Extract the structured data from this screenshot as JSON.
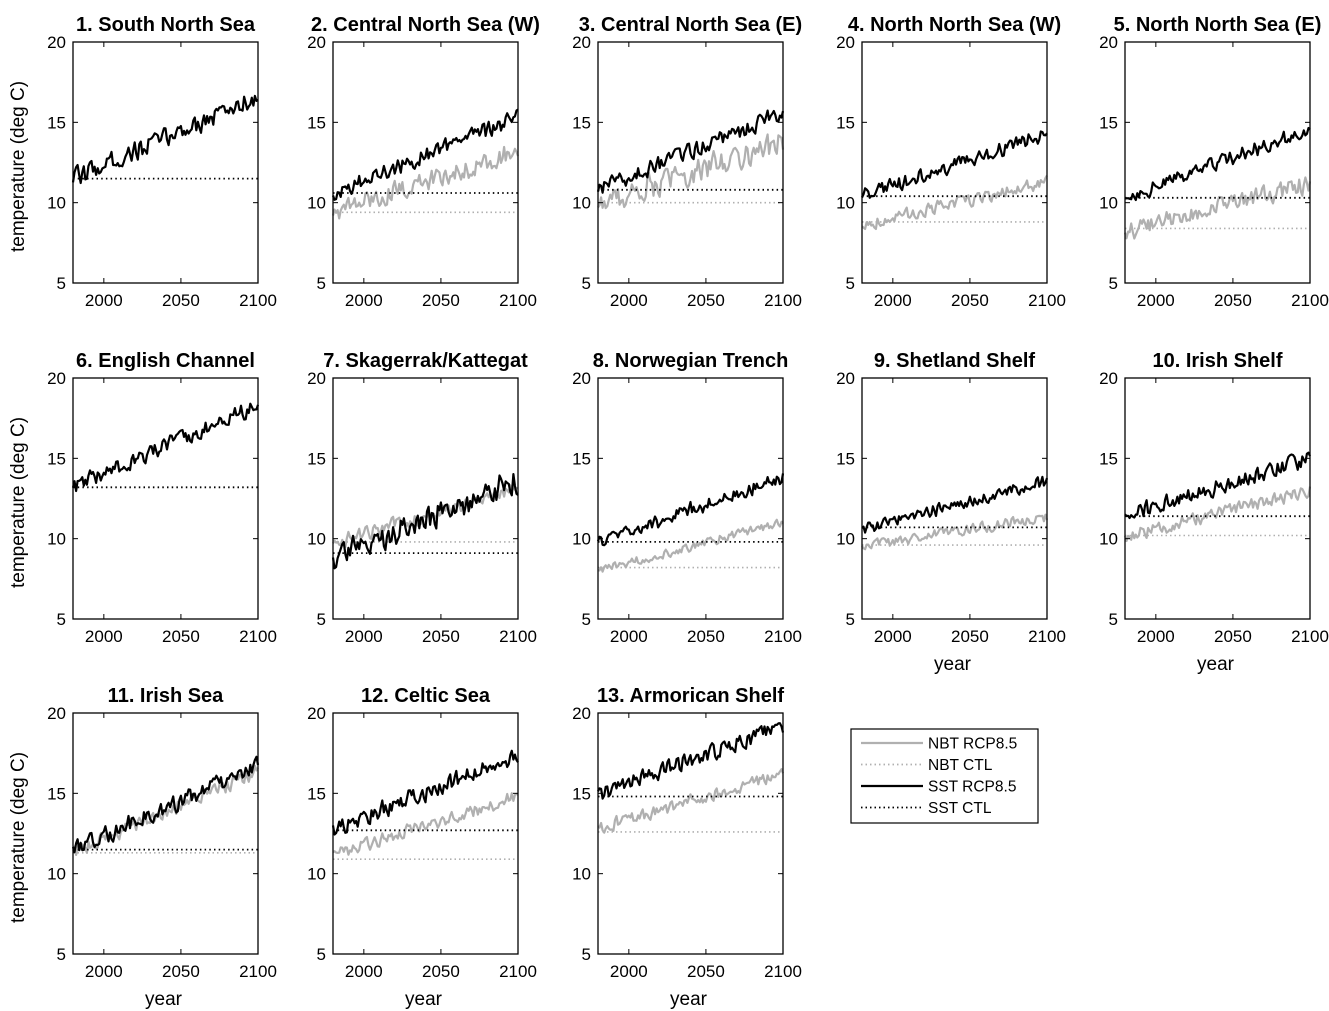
{
  "figure": {
    "legend": {
      "placement": "row-3, right of panel 13",
      "entries": [
        {
          "label": "NBT RCP8.5",
          "color": "#b0b0b0",
          "style": "solid"
        },
        {
          "label": "NBT CTL",
          "color": "#b0b0b0",
          "style": "dotted"
        },
        {
          "label": "SST RCP8.5",
          "color": "#000000",
          "style": "solid"
        },
        {
          "label": "SST CTL",
          "color": "#000000",
          "style": "dotted"
        }
      ]
    }
  },
  "chart_data": [
    {
      "type": "line",
      "title": "1. South North Sea",
      "ylabel": "temperature (deg C)",
      "xlabel": "",
      "xlim": [
        1980,
        2100
      ],
      "ylim": [
        5,
        20
      ],
      "xticks": [
        "2000",
        "2050",
        "2100"
      ],
      "yticks": [
        "5",
        "10",
        "15",
        "20"
      ],
      "series": [
        {
          "name": "SST RCP8.5",
          "start": 11.5,
          "end": 16.6,
          "noise": 0.55
        },
        {
          "name": "SST CTL",
          "value": 11.5
        }
      ]
    },
    {
      "type": "line",
      "title": "2. Central North Sea (W)",
      "ylabel": "",
      "xlabel": "",
      "xlim": [
        1980,
        2100
      ],
      "ylim": [
        5,
        20
      ],
      "xticks": [
        "2000",
        "2050",
        "2100"
      ],
      "yticks": [
        "5",
        "10",
        "15",
        "20"
      ],
      "series": [
        {
          "name": "NBT RCP8.5",
          "start": 9.4,
          "end": 13.2,
          "noise": 0.55
        },
        {
          "name": "NBT CTL",
          "value": 9.4
        },
        {
          "name": "SST RCP8.5",
          "start": 10.6,
          "end": 15.3,
          "noise": 0.45
        },
        {
          "name": "SST CTL",
          "value": 10.6
        }
      ]
    },
    {
      "type": "line",
      "title": "3. Central North Sea (E)",
      "ylabel": "",
      "xlabel": "",
      "xlim": [
        1980,
        2100
      ],
      "ylim": [
        5,
        20
      ],
      "xticks": [
        "2000",
        "2050",
        "2100"
      ],
      "yticks": [
        "5",
        "10",
        "15",
        "20"
      ],
      "series": [
        {
          "name": "NBT RCP8.5",
          "start": 9.9,
          "end": 13.8,
          "noise": 0.7
        },
        {
          "name": "NBT CTL",
          "value": 10.0
        },
        {
          "name": "SST RCP8.5",
          "start": 10.8,
          "end": 15.6,
          "noise": 0.45
        },
        {
          "name": "SST CTL",
          "value": 10.8
        }
      ]
    },
    {
      "type": "line",
      "title": "4. North North Sea (W)",
      "ylabel": "",
      "xlabel": "",
      "xlim": [
        1980,
        2100
      ],
      "ylim": [
        5,
        20
      ],
      "xticks": [
        "2000",
        "2050",
        "2100"
      ],
      "yticks": [
        "5",
        "10",
        "15",
        "20"
      ],
      "series": [
        {
          "name": "NBT RCP8.5",
          "start": 8.6,
          "end": 11.3,
          "noise": 0.35
        },
        {
          "name": "NBT CTL",
          "value": 8.8
        },
        {
          "name": "SST RCP8.5",
          "start": 10.4,
          "end": 14.3,
          "noise": 0.4
        },
        {
          "name": "SST CTL",
          "value": 10.4
        }
      ]
    },
    {
      "type": "line",
      "title": "5. North North Sea (E)",
      "ylabel": "",
      "xlabel": "",
      "xlim": [
        1980,
        2100
      ],
      "ylim": [
        5,
        20
      ],
      "xticks": [
        "2000",
        "2050",
        "2100"
      ],
      "yticks": [
        "5",
        "10",
        "15",
        "20"
      ],
      "series": [
        {
          "name": "NBT RCP8.5",
          "start": 8.2,
          "end": 11.2,
          "noise": 0.5
        },
        {
          "name": "NBT CTL",
          "value": 8.4
        },
        {
          "name": "SST RCP8.5",
          "start": 10.3,
          "end": 14.6,
          "noise": 0.4
        },
        {
          "name": "SST CTL",
          "value": 10.3
        }
      ]
    },
    {
      "type": "line",
      "title": "6. English Channel",
      "ylabel": "temperature (deg C)",
      "xlabel": "",
      "xlim": [
        1980,
        2100
      ],
      "ylim": [
        5,
        20
      ],
      "xticks": [
        "2000",
        "2050",
        "2100"
      ],
      "yticks": [
        "5",
        "10",
        "15",
        "20"
      ],
      "series": [
        {
          "name": "SST RCP8.5",
          "start": 13.2,
          "end": 18.3,
          "noise": 0.45
        },
        {
          "name": "SST CTL",
          "value": 13.2
        }
      ]
    },
    {
      "type": "line",
      "title": "7. Skagerrak/Kattegat",
      "ylabel": "",
      "xlabel": "",
      "xlim": [
        1980,
        2100
      ],
      "ylim": [
        5,
        20
      ],
      "xticks": [
        "2000",
        "2050",
        "2100"
      ],
      "yticks": [
        "5",
        "10",
        "15",
        "20"
      ],
      "series": [
        {
          "name": "NBT RCP8.5",
          "start": 9.7,
          "end": 13.2,
          "noise": 0.4
        },
        {
          "name": "NBT CTL",
          "value": 9.8
        },
        {
          "name": "SST RCP8.5",
          "start": 8.8,
          "end": 13.6,
          "noise": 0.75
        },
        {
          "name": "SST CTL",
          "value": 9.1
        }
      ]
    },
    {
      "type": "line",
      "title": "8. Norwegian Trench",
      "ylabel": "",
      "xlabel": "",
      "xlim": [
        1980,
        2100
      ],
      "ylim": [
        5,
        20
      ],
      "xticks": [
        "2000",
        "2050",
        "2100"
      ],
      "yticks": [
        "5",
        "10",
        "15",
        "20"
      ],
      "series": [
        {
          "name": "NBT RCP8.5",
          "start": 8.0,
          "end": 11.0,
          "noise": 0.25
        },
        {
          "name": "NBT CTL",
          "value": 8.2
        },
        {
          "name": "SST RCP8.5",
          "start": 9.8,
          "end": 13.8,
          "noise": 0.4
        },
        {
          "name": "SST CTL",
          "value": 9.8
        }
      ]
    },
    {
      "type": "line",
      "title": "9. Shetland Shelf",
      "ylabel": "",
      "xlabel": "year",
      "xlim": [
        1980,
        2100
      ],
      "ylim": [
        5,
        20
      ],
      "xticks": [
        "2000",
        "2050",
        "2100"
      ],
      "yticks": [
        "5",
        "10",
        "15",
        "20"
      ],
      "series": [
        {
          "name": "NBT RCP8.5",
          "start": 9.5,
          "end": 11.3,
          "noise": 0.3
        },
        {
          "name": "NBT CTL",
          "value": 9.6
        },
        {
          "name": "SST RCP8.5",
          "start": 10.6,
          "end": 13.6,
          "noise": 0.35
        },
        {
          "name": "SST CTL",
          "value": 10.7
        }
      ]
    },
    {
      "type": "line",
      "title": "10. Irish Shelf",
      "ylabel": "",
      "xlabel": "year",
      "xlim": [
        1980,
        2100
      ],
      "ylim": [
        5,
        20
      ],
      "xticks": [
        "2000",
        "2050",
        "2100"
      ],
      "yticks": [
        "5",
        "10",
        "15",
        "20"
      ],
      "series": [
        {
          "name": "NBT RCP8.5",
          "start": 10.1,
          "end": 13.0,
          "noise": 0.35
        },
        {
          "name": "NBT CTL",
          "value": 10.2
        },
        {
          "name": "SST RCP8.5",
          "start": 11.4,
          "end": 15.0,
          "noise": 0.45
        },
        {
          "name": "SST CTL",
          "value": 11.4
        }
      ]
    },
    {
      "type": "line",
      "title": "11. Irish Sea",
      "ylabel": "temperature (deg C)",
      "xlabel": "year",
      "xlim": [
        1980,
        2100
      ],
      "ylim": [
        5,
        20
      ],
      "xticks": [
        "2000",
        "2050",
        "2100"
      ],
      "yticks": [
        "5",
        "10",
        "15",
        "20"
      ],
      "series": [
        {
          "name": "NBT RCP8.5",
          "start": 11.3,
          "end": 16.4,
          "noise": 0.4
        },
        {
          "name": "NBT CTL",
          "value": 11.3
        },
        {
          "name": "SST RCP8.5",
          "start": 11.5,
          "end": 16.7,
          "noise": 0.5
        },
        {
          "name": "SST CTL",
          "value": 11.5
        }
      ]
    },
    {
      "type": "line",
      "title": "12. Celtic Sea",
      "ylabel": "",
      "xlabel": "year",
      "xlim": [
        1980,
        2100
      ],
      "ylim": [
        5,
        20
      ],
      "xticks": [
        "2000",
        "2050",
        "2100"
      ],
      "yticks": [
        "5",
        "10",
        "15",
        "20"
      ],
      "series": [
        {
          "name": "NBT RCP8.5",
          "start": 11.2,
          "end": 14.8,
          "noise": 0.35
        },
        {
          "name": "NBT CTL",
          "value": 10.9
        },
        {
          "name": "SST RCP8.5",
          "start": 12.8,
          "end": 17.3,
          "noise": 0.5
        },
        {
          "name": "SST CTL",
          "value": 12.7
        }
      ]
    },
    {
      "type": "line",
      "title": "13. Armorican Shelf",
      "ylabel": "",
      "xlabel": "year",
      "xlim": [
        1980,
        2100
      ],
      "ylim": [
        5,
        20
      ],
      "xticks": [
        "2000",
        "2050",
        "2100"
      ],
      "yticks": [
        "5",
        "10",
        "15",
        "20"
      ],
      "series": [
        {
          "name": "NBT RCP8.5",
          "start": 12.8,
          "end": 16.2,
          "noise": 0.35
        },
        {
          "name": "NBT CTL",
          "value": 12.6
        },
        {
          "name": "SST RCP8.5",
          "start": 14.9,
          "end": 19.2,
          "noise": 0.45
        },
        {
          "name": "SST CTL",
          "value": 14.8
        }
      ]
    }
  ]
}
